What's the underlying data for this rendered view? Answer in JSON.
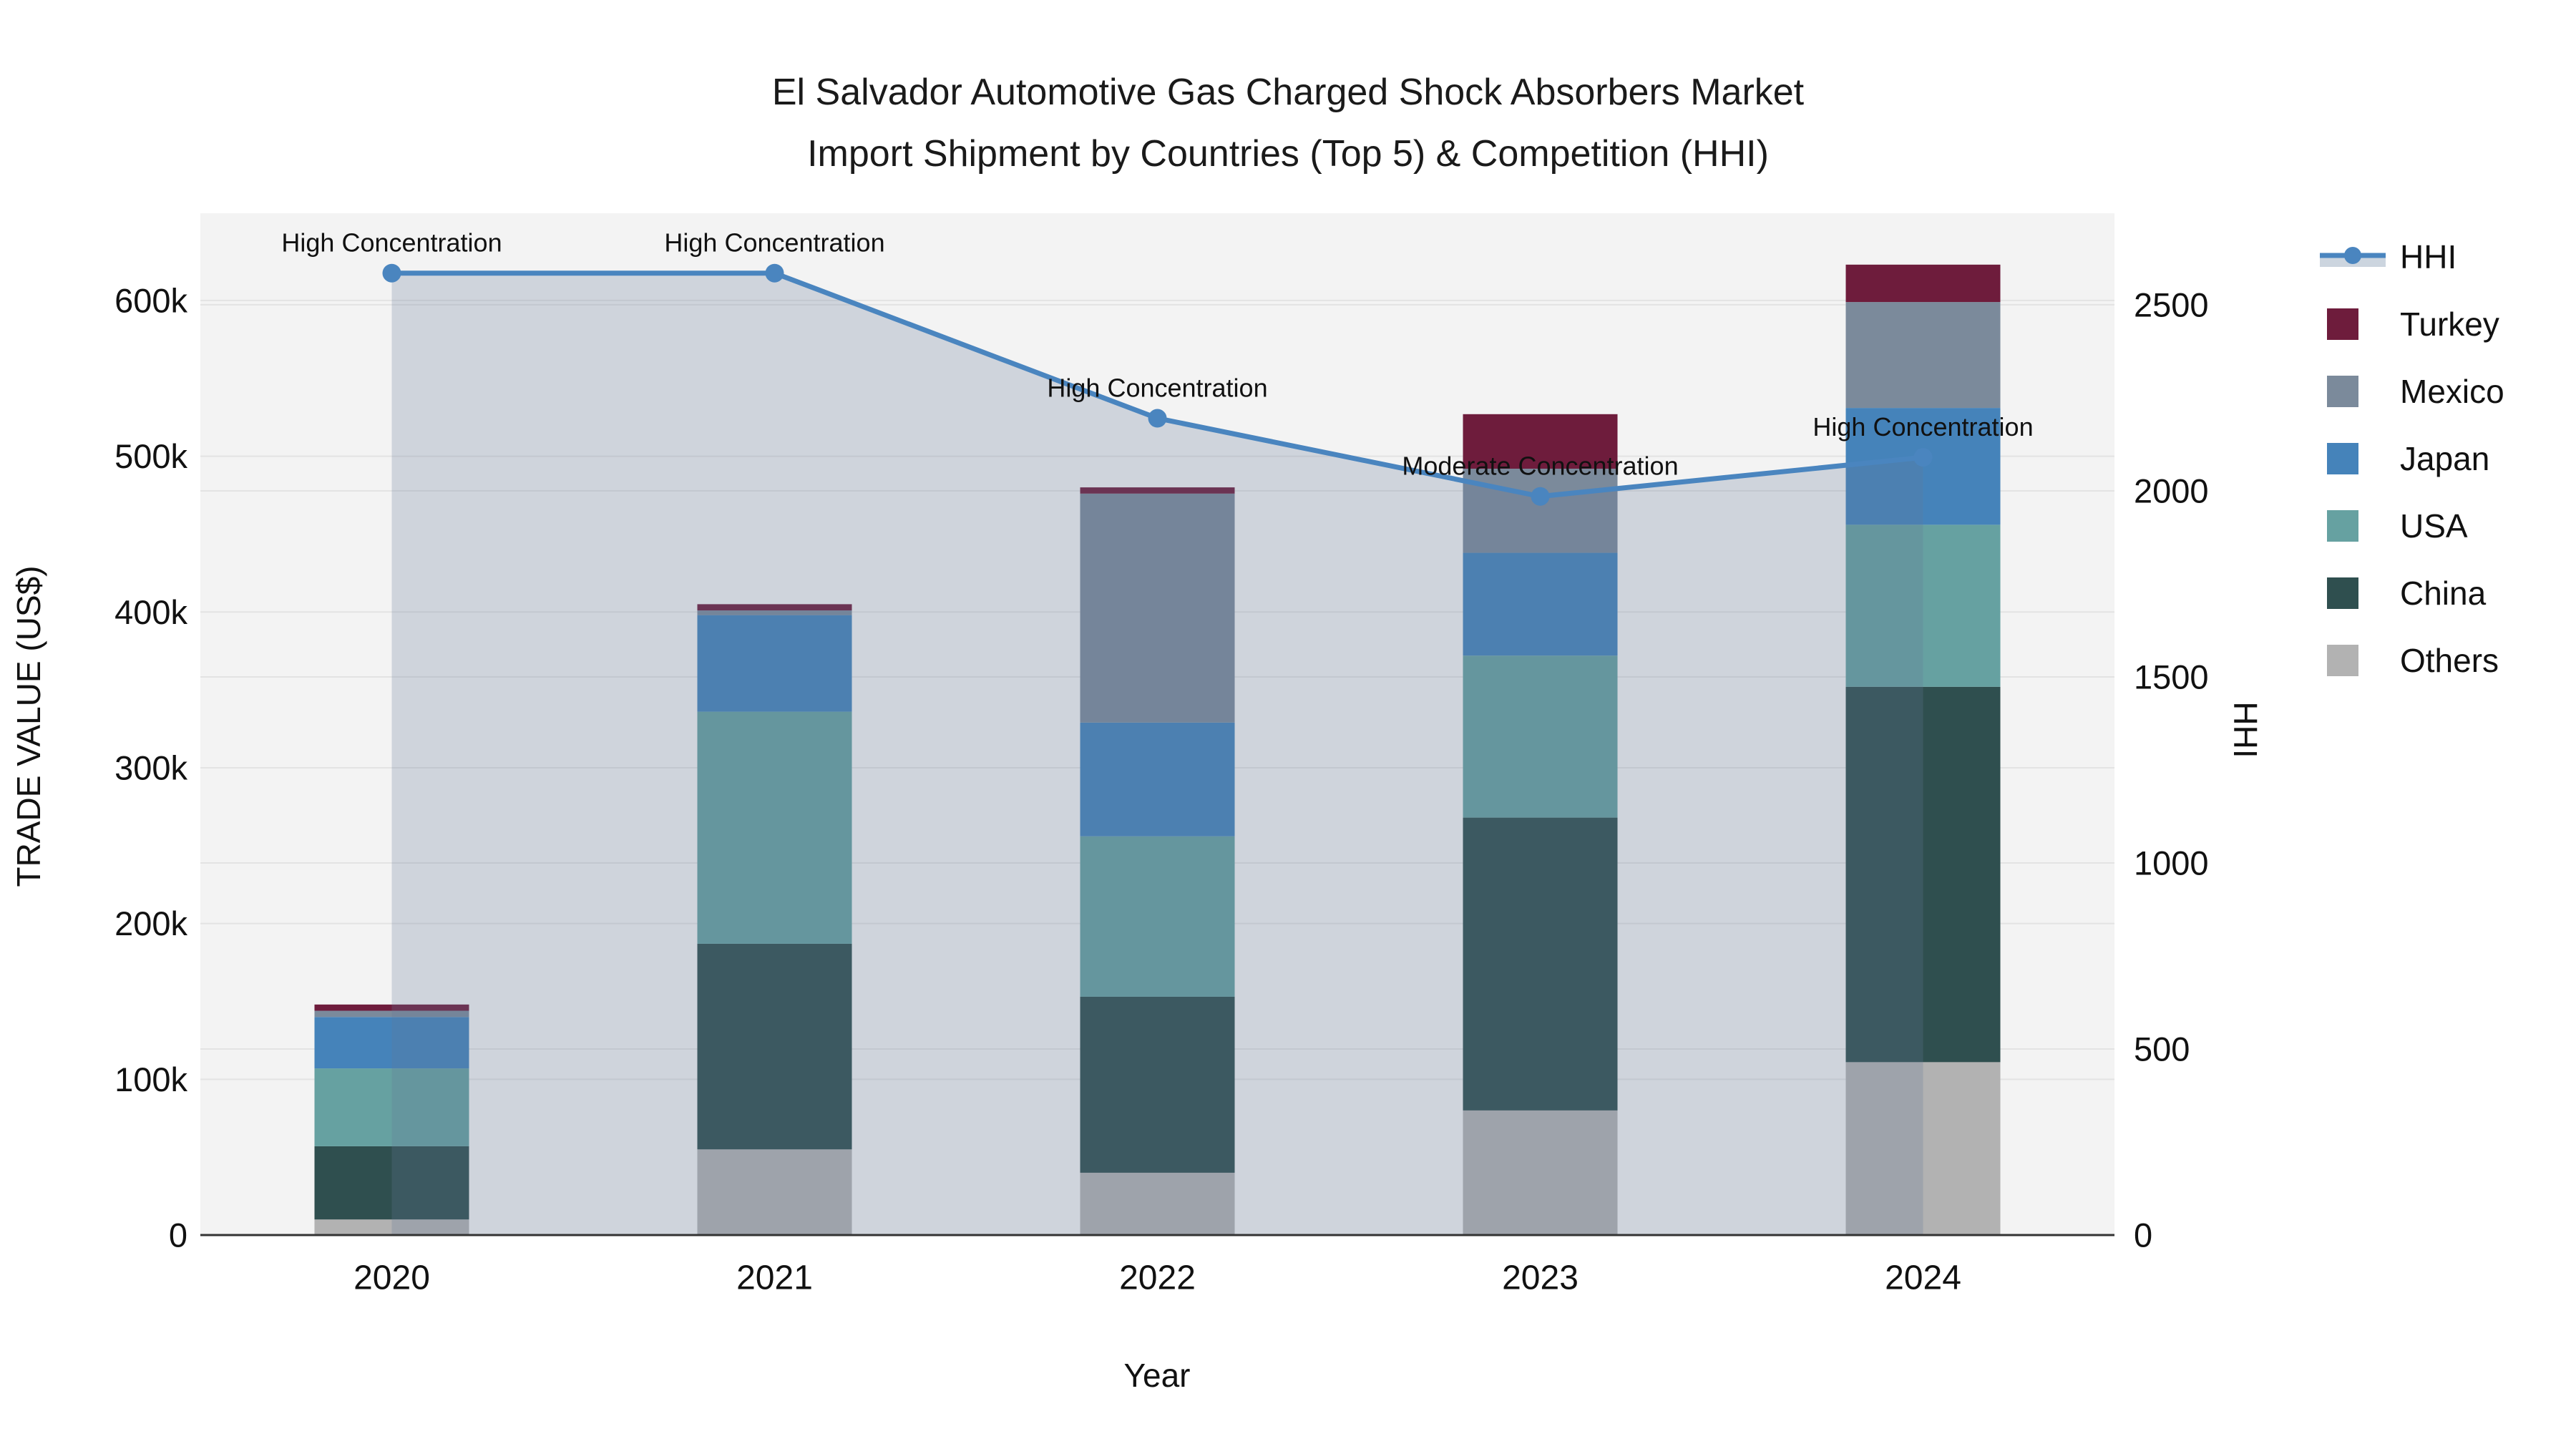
{
  "title": {
    "line1": "El Salvador Automotive Gas Charged Shock Absorbers Market",
    "line2": "Import Shipment by Countries (Top 5) & Competition (HHI)"
  },
  "axes": {
    "x": {
      "title": "Year",
      "ticks": [
        "2020",
        "2021",
        "2022",
        "2023",
        "2024"
      ]
    },
    "y_left": {
      "title": "TRADE VALUE (US$)",
      "tick_labels": [
        "0",
        "100k",
        "200k",
        "300k",
        "400k",
        "500k",
        "600k"
      ],
      "tick_values": [
        0,
        100,
        200,
        300,
        400,
        500,
        600
      ]
    },
    "y_right": {
      "title": "HHI",
      "tick_labels": [
        "0",
        "500",
        "1000",
        "1500",
        "2000",
        "2500"
      ],
      "tick_values": [
        0,
        500,
        1000,
        1500,
        2000,
        2500
      ]
    }
  },
  "chart_data": {
    "type": "bar",
    "stacked": true,
    "grid": true,
    "legend_position": "right",
    "categories": [
      "2020",
      "2021",
      "2022",
      "2023",
      "2024"
    ],
    "value_unit": "thousand US$",
    "ylim_left": [
      0,
      656
    ],
    "ylim_right": [
      0,
      2746
    ],
    "series": [
      {
        "name": "Others",
        "color": "#b2b2b2",
        "values": [
          10,
          55,
          40,
          80,
          111
        ]
      },
      {
        "name": "China",
        "color": "#2f4f4f",
        "values": [
          47,
          132,
          113,
          188,
          241
        ]
      },
      {
        "name": "USA",
        "color": "#66a1a1",
        "values": [
          50,
          149,
          103,
          104,
          104
        ]
      },
      {
        "name": "Japan",
        "color": "#4583ba",
        "values": [
          33,
          62,
          73,
          66,
          75
        ]
      },
      {
        "name": "Mexico",
        "color": "#7b8a9b",
        "values": [
          4,
          3,
          147,
          54,
          68
        ]
      },
      {
        "name": "Turkey",
        "color": "#6e1c3c",
        "values": [
          4,
          4,
          4,
          35,
          24
        ]
      }
    ],
    "line_series": {
      "name": "HHI",
      "axis": "right",
      "color": "#4a85bf",
      "fill_color": "rgba(100,120,150,0.25)",
      "values": [
        2585,
        2585,
        2195,
        1985,
        2090
      ]
    },
    "annotations": [
      {
        "category": "2020",
        "text": "High Concentration"
      },
      {
        "category": "2021",
        "text": "High Concentration"
      },
      {
        "category": "2022",
        "text": "High Concentration"
      },
      {
        "category": "2023",
        "text": "Moderate Concentration"
      },
      {
        "category": "2024",
        "text": "High Concentration"
      }
    ],
    "legend": {
      "items": [
        {
          "label": "HHI",
          "swatch": "line",
          "color": "#4a85bf"
        },
        {
          "label": "Turkey",
          "swatch": "square",
          "color": "#6e1c3c"
        },
        {
          "label": "Mexico",
          "swatch": "square",
          "color": "#7b8a9b"
        },
        {
          "label": "Japan",
          "swatch": "square",
          "color": "#4583ba"
        },
        {
          "label": "USA",
          "swatch": "square",
          "color": "#66a1a1"
        },
        {
          "label": "China",
          "swatch": "square",
          "color": "#2f4f4f"
        },
        {
          "label": "Others",
          "swatch": "square",
          "color": "#b2b2b2"
        }
      ]
    }
  },
  "colors": {
    "plot_bg": "#f3f3f3",
    "grid": "#e3e3e3",
    "axis_line": "#333333",
    "text": "#111111",
    "legend_fill_band": "#ccd5df"
  }
}
